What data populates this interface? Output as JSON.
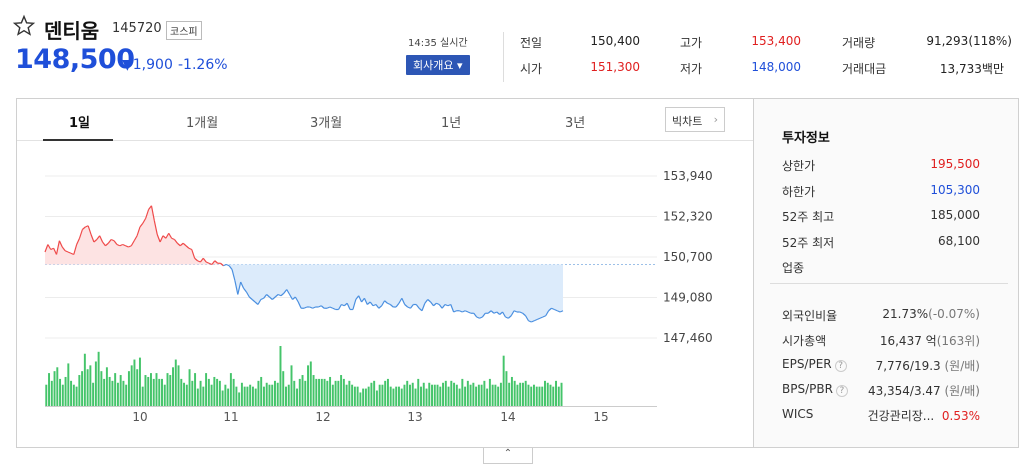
{
  "stock": {
    "name": "덴티움",
    "code": "145720",
    "market": "코스피",
    "price": "148,500",
    "change": "▼1,900",
    "change_pct": "-1.26%",
    "realtime": "14:35 실시간",
    "company_btn": "회사개요 ▾"
  },
  "quote": [
    {
      "label": "전일",
      "value": "150,400",
      "tone": "plain"
    },
    {
      "label": "고가",
      "value": "153,400",
      "tone": "red"
    },
    {
      "label": "거래량",
      "value": "91,293(118%)",
      "tone": "plain"
    },
    {
      "label": "시가",
      "value": "151,300",
      "tone": "red"
    },
    {
      "label": "저가",
      "value": "148,000",
      "tone": "blue"
    },
    {
      "label": "거래대금",
      "value": "13,733백만",
      "tone": "plain"
    }
  ],
  "tabs": [
    "1일",
    "1개월",
    "3개월",
    "1년",
    "3년"
  ],
  "big_chart_label": "빅차트",
  "chart_data": {
    "type": "line",
    "y_ticks": [
      "153,940",
      "152,320",
      "150,700",
      "149,080",
      "147,460"
    ],
    "ylim": [
      147460,
      153940
    ],
    "x_ticks": [
      "10",
      "11",
      "12",
      "13",
      "14",
      "15"
    ],
    "baseline": 150400,
    "price": [
      150900,
      151200,
      151000,
      151050,
      150800,
      151350,
      151100,
      150950,
      150900,
      150850,
      150800,
      151200,
      151450,
      151800,
      151900,
      151950,
      151600,
      151300,
      151400,
      151550,
      151300,
      151150,
      151250,
      151400,
      151350,
      151200,
      151150,
      151200,
      151150,
      151100,
      151150,
      151350,
      151550,
      151900,
      152050,
      152250,
      152600,
      152750,
      152150,
      151600,
      151300,
      151550,
      151450,
      151650,
      151450,
      151400,
      151250,
      151150,
      151250,
      151150,
      151050,
      151000,
      150650,
      150550,
      150500,
      150650,
      150500,
      150450,
      150400,
      150550,
      150450,
      150450,
      150350,
      150400,
      150350,
      150200,
      149750,
      149200,
      149700,
      149450,
      149300,
      149100,
      149000,
      148900,
      148800,
      149000,
      149050,
      149200,
      149100,
      149000,
      149100,
      149200,
      149150,
      149250,
      149400,
      149200,
      149000,
      149100,
      148900,
      148650,
      148650,
      148700,
      148700,
      148650,
      148700,
      148700,
      148750,
      148650,
      148650,
      148700,
      148650,
      148600,
      148600,
      148800,
      148750,
      148850,
      148600,
      148600,
      149000,
      149150,
      148900,
      149050,
      148800,
      148900,
      148750,
      148800,
      148650,
      148750,
      148950,
      148850,
      148800,
      148700,
      148700,
      148850,
      149050,
      148800,
      148700,
      148650,
      148800,
      148800,
      148650,
      148550,
      148850,
      149000,
      148900,
      148750,
      148850,
      148800,
      148650,
      148800,
      148750,
      148800,
      148500,
      148550,
      148550,
      148500,
      148550,
      148500,
      148450,
      148450,
      148300,
      148250,
      148300,
      148450,
      148450,
      148550,
      148450,
      148500,
      148400,
      148500,
      148300,
      148250,
      148350,
      148550,
      148500,
      148500,
      148450,
      148350,
      148150,
      148100,
      148150,
      148200,
      148250,
      148300,
      148350,
      148550,
      148650,
      148600,
      148550,
      148500,
      148550
    ],
    "volume": [
      11,
      17,
      13,
      18,
      20,
      14,
      11,
      15,
      22,
      13,
      11,
      10,
      16,
      18,
      27,
      19,
      21,
      12,
      23,
      28,
      18,
      14,
      20,
      15,
      13,
      17,
      12,
      16,
      13,
      11,
      18,
      21,
      24,
      19,
      25,
      10,
      16,
      15,
      17,
      14,
      17,
      14,
      14,
      11,
      17,
      16,
      20,
      24,
      21,
      14,
      12,
      11,
      19,
      13,
      17,
      9,
      13,
      10,
      17,
      14,
      11,
      15,
      14,
      13,
      8,
      11,
      9,
      17,
      14,
      10,
      7,
      12,
      10,
      10,
      11,
      10,
      9,
      13,
      15,
      10,
      12,
      11,
      11,
      13,
      12,
      31,
      18,
      10,
      11,
      21,
      13,
      9,
      14,
      16,
      13,
      21,
      23,
      16,
      14,
      14,
      14,
      14,
      13,
      15,
      11,
      13,
      13,
      16,
      14,
      11,
      13,
      11,
      10,
      10,
      7,
      9,
      9,
      10,
      12,
      13,
      8,
      11,
      11,
      13,
      14,
      10,
      9,
      10,
      10,
      9,
      11,
      13,
      11,
      12,
      9,
      14,
      10,
      12,
      9,
      12,
      11,
      11,
      11,
      10,
      12,
      13,
      10,
      13,
      12,
      11,
      9,
      14,
      10,
      13,
      11,
      12,
      10,
      11,
      11,
      13,
      9,
      14,
      11,
      11,
      10,
      12,
      26,
      18,
      12,
      15,
      13,
      11,
      12,
      12,
      13,
      11,
      10,
      11,
      10,
      10,
      10,
      13,
      12,
      11,
      10,
      13,
      10,
      12
    ]
  },
  "invest": {
    "title": "투자정보",
    "upper": {
      "label": "상한가",
      "value": "195,500"
    },
    "lower": {
      "label": "하한가",
      "value": "105,300"
    },
    "hi52": {
      "label": "52주 최고",
      "value": "185,000"
    },
    "lo52": {
      "label": "52주 최저",
      "value": "68,100"
    },
    "sector": {
      "label": "업종"
    },
    "foreign": {
      "label": "외국인비율",
      "value": "21.73%",
      "sub": "(-0.07%)"
    },
    "mcap": {
      "label": "시가총액",
      "value": "16,437 억",
      "sub": "(163위)"
    },
    "eps": {
      "label": "EPS/PER",
      "value": "7,776/19.3",
      "sub": " (원/배)"
    },
    "bps": {
      "label": "BPS/PBR",
      "value": "43,354/3.47",
      "sub": " (원/배)"
    },
    "wics": {
      "label": "WICS",
      "value": "건강관리장...",
      "pct": "0.53%"
    }
  },
  "help_glyph": "?",
  "toggle_glyph": "⌃"
}
